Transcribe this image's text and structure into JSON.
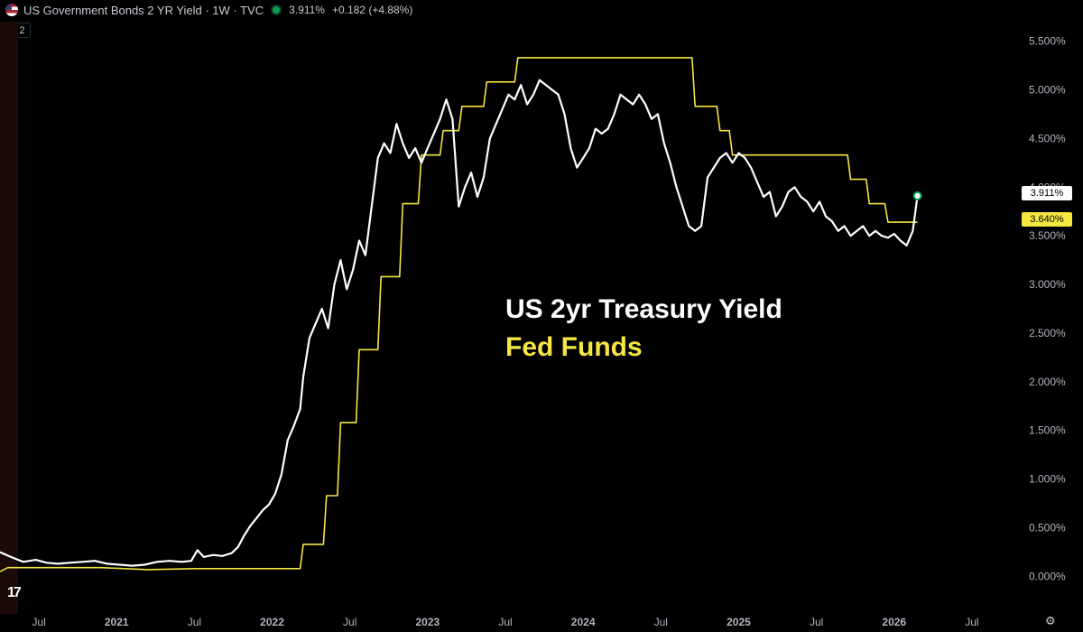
{
  "header": {
    "symbol": "US Government Bonds 2 YR Yield · 1W · TVC",
    "last": "3.911%",
    "change": "+0.182 (+4.88%)",
    "collapse_label": "2"
  },
  "overlay": {
    "line1": "US 2yr Treasury Yield",
    "line2": "Fed Funds",
    "line1_color": "#ffffff",
    "line2_color": "#f5e642"
  },
  "tags": {
    "yield": "3.911%",
    "fed": "3.640%"
  },
  "colors": {
    "yield": "#ffffff",
    "fed": "#f5e642",
    "background": "#000000"
  },
  "chart_data": {
    "type": "line",
    "ylim": [
      -0.2,
      5.7
    ],
    "xlim": [
      2020.25,
      2026.75
    ],
    "y_ticks": [
      "0.000%",
      "0.500%",
      "1.000%",
      "1.500%",
      "2.000%",
      "2.500%",
      "3.000%",
      "3.500%",
      "4.000%",
      "4.500%",
      "5.000%",
      "5.500%"
    ],
    "y_tick_values": [
      0,
      0.5,
      1.0,
      1.5,
      2.0,
      2.5,
      3.0,
      3.5,
      4.0,
      4.5,
      5.0,
      5.5
    ],
    "x_ticks": [
      {
        "label": "Jul",
        "x": 2020.5,
        "bold": false
      },
      {
        "label": "2021",
        "x": 2021.0,
        "bold": true
      },
      {
        "label": "Jul",
        "x": 2021.5,
        "bold": false
      },
      {
        "label": "2022",
        "x": 2022.0,
        "bold": true
      },
      {
        "label": "Jul",
        "x": 2022.5,
        "bold": false
      },
      {
        "label": "2023",
        "x": 2023.0,
        "bold": true
      },
      {
        "label": "Jul",
        "x": 2023.5,
        "bold": false
      },
      {
        "label": "2024",
        "x": 2024.0,
        "bold": true
      },
      {
        "label": "Jul",
        "x": 2024.5,
        "bold": false
      },
      {
        "label": "2025",
        "x": 2025.0,
        "bold": true
      },
      {
        "label": "Jul",
        "x": 2025.5,
        "bold": false
      },
      {
        "label": "2026",
        "x": 2026.0,
        "bold": true
      },
      {
        "label": "Jul",
        "x": 2026.5,
        "bold": false
      }
    ],
    "series": [
      {
        "name": "US 2yr Treasury Yield",
        "color": "#ffffff",
        "points": [
          [
            2020.25,
            0.25
          ],
          [
            2020.32,
            0.2
          ],
          [
            2020.4,
            0.15
          ],
          [
            2020.48,
            0.17
          ],
          [
            2020.55,
            0.14
          ],
          [
            2020.62,
            0.13
          ],
          [
            2020.7,
            0.14
          ],
          [
            2020.78,
            0.15
          ],
          [
            2020.86,
            0.16
          ],
          [
            2020.94,
            0.13
          ],
          [
            2021.02,
            0.12
          ],
          [
            2021.1,
            0.11
          ],
          [
            2021.18,
            0.12
          ],
          [
            2021.26,
            0.15
          ],
          [
            2021.34,
            0.16
          ],
          [
            2021.42,
            0.15
          ],
          [
            2021.48,
            0.16
          ],
          [
            2021.52,
            0.27
          ],
          [
            2021.56,
            0.2
          ],
          [
            2021.62,
            0.22
          ],
          [
            2021.68,
            0.21
          ],
          [
            2021.74,
            0.24
          ],
          [
            2021.78,
            0.3
          ],
          [
            2021.82,
            0.42
          ],
          [
            2021.86,
            0.52
          ],
          [
            2021.9,
            0.6
          ],
          [
            2021.94,
            0.68
          ],
          [
            2021.98,
            0.74
          ],
          [
            2022.02,
            0.85
          ],
          [
            2022.06,
            1.05
          ],
          [
            2022.1,
            1.4
          ],
          [
            2022.14,
            1.55
          ],
          [
            2022.18,
            1.72
          ],
          [
            2022.2,
            2.05
          ],
          [
            2022.24,
            2.45
          ],
          [
            2022.28,
            2.6
          ],
          [
            2022.32,
            2.75
          ],
          [
            2022.36,
            2.55
          ],
          [
            2022.4,
            3.0
          ],
          [
            2022.44,
            3.25
          ],
          [
            2022.48,
            2.95
          ],
          [
            2022.52,
            3.15
          ],
          [
            2022.56,
            3.45
          ],
          [
            2022.6,
            3.3
          ],
          [
            2022.64,
            3.8
          ],
          [
            2022.68,
            4.3
          ],
          [
            2022.72,
            4.45
          ],
          [
            2022.76,
            4.35
          ],
          [
            2022.8,
            4.65
          ],
          [
            2022.84,
            4.45
          ],
          [
            2022.88,
            4.3
          ],
          [
            2022.92,
            4.4
          ],
          [
            2022.96,
            4.25
          ],
          [
            2023.0,
            4.4
          ],
          [
            2023.04,
            4.55
          ],
          [
            2023.08,
            4.7
          ],
          [
            2023.12,
            4.9
          ],
          [
            2023.16,
            4.7
          ],
          [
            2023.2,
            3.8
          ],
          [
            2023.24,
            4.0
          ],
          [
            2023.28,
            4.15
          ],
          [
            2023.32,
            3.9
          ],
          [
            2023.36,
            4.1
          ],
          [
            2023.4,
            4.5
          ],
          [
            2023.44,
            4.65
          ],
          [
            2023.48,
            4.8
          ],
          [
            2023.52,
            4.95
          ],
          [
            2023.56,
            4.9
          ],
          [
            2023.6,
            5.05
          ],
          [
            2023.64,
            4.85
          ],
          [
            2023.68,
            4.95
          ],
          [
            2023.72,
            5.1
          ],
          [
            2023.76,
            5.05
          ],
          [
            2023.8,
            5.0
          ],
          [
            2023.84,
            4.95
          ],
          [
            2023.88,
            4.75
          ],
          [
            2023.92,
            4.4
          ],
          [
            2023.96,
            4.2
          ],
          [
            2024.0,
            4.3
          ],
          [
            2024.04,
            4.4
          ],
          [
            2024.08,
            4.6
          ],
          [
            2024.12,
            4.55
          ],
          [
            2024.16,
            4.6
          ],
          [
            2024.2,
            4.75
          ],
          [
            2024.24,
            4.95
          ],
          [
            2024.28,
            4.9
          ],
          [
            2024.32,
            4.85
          ],
          [
            2024.36,
            4.95
          ],
          [
            2024.4,
            4.85
          ],
          [
            2024.44,
            4.7
          ],
          [
            2024.48,
            4.75
          ],
          [
            2024.52,
            4.45
          ],
          [
            2024.56,
            4.25
          ],
          [
            2024.6,
            4.0
          ],
          [
            2024.64,
            3.8
          ],
          [
            2024.68,
            3.6
          ],
          [
            2024.72,
            3.55
          ],
          [
            2024.76,
            3.6
          ],
          [
            2024.8,
            4.1
          ],
          [
            2024.84,
            4.2
          ],
          [
            2024.88,
            4.3
          ],
          [
            2024.92,
            4.35
          ],
          [
            2024.96,
            4.25
          ],
          [
            2025.0,
            4.35
          ],
          [
            2025.04,
            4.3
          ],
          [
            2025.08,
            4.2
          ],
          [
            2025.12,
            4.05
          ],
          [
            2025.16,
            3.9
          ],
          [
            2025.2,
            3.95
          ],
          [
            2025.24,
            3.7
          ],
          [
            2025.28,
            3.8
          ],
          [
            2025.32,
            3.95
          ],
          [
            2025.36,
            4.0
          ],
          [
            2025.4,
            3.9
          ],
          [
            2025.44,
            3.85
          ],
          [
            2025.48,
            3.75
          ],
          [
            2025.52,
            3.85
          ],
          [
            2025.56,
            3.7
          ],
          [
            2025.6,
            3.65
          ],
          [
            2025.64,
            3.55
          ],
          [
            2025.68,
            3.6
          ],
          [
            2025.72,
            3.5
          ],
          [
            2025.76,
            3.55
          ],
          [
            2025.8,
            3.6
          ],
          [
            2025.84,
            3.5
          ],
          [
            2025.88,
            3.55
          ],
          [
            2025.92,
            3.5
          ],
          [
            2025.96,
            3.48
          ],
          [
            2026.0,
            3.52
          ],
          [
            2026.04,
            3.45
          ],
          [
            2026.08,
            3.4
          ],
          [
            2026.12,
            3.55
          ],
          [
            2026.15,
            3.911
          ]
        ]
      },
      {
        "name": "Fed Funds",
        "color": "#f5e642",
        "points": [
          [
            2020.25,
            0.05
          ],
          [
            2020.3,
            0.09
          ],
          [
            2020.6,
            0.09
          ],
          [
            2020.9,
            0.09
          ],
          [
            2021.2,
            0.07
          ],
          [
            2021.5,
            0.08
          ],
          [
            2021.8,
            0.08
          ],
          [
            2022.1,
            0.08
          ],
          [
            2022.18,
            0.08
          ],
          [
            2022.2,
            0.33
          ],
          [
            2022.33,
            0.33
          ],
          [
            2022.35,
            0.83
          ],
          [
            2022.42,
            0.83
          ],
          [
            2022.44,
            1.58
          ],
          [
            2022.54,
            1.58
          ],
          [
            2022.56,
            2.33
          ],
          [
            2022.68,
            2.33
          ],
          [
            2022.7,
            3.08
          ],
          [
            2022.82,
            3.08
          ],
          [
            2022.84,
            3.83
          ],
          [
            2022.94,
            3.83
          ],
          [
            2022.96,
            4.33
          ],
          [
            2023.08,
            4.33
          ],
          [
            2023.1,
            4.58
          ],
          [
            2023.2,
            4.58
          ],
          [
            2023.22,
            4.83
          ],
          [
            2023.36,
            4.83
          ],
          [
            2023.38,
            5.08
          ],
          [
            2023.56,
            5.08
          ],
          [
            2023.58,
            5.33
          ],
          [
            2024.7,
            5.33
          ],
          [
            2024.72,
            4.83
          ],
          [
            2024.86,
            4.83
          ],
          [
            2024.88,
            4.58
          ],
          [
            2024.94,
            4.58
          ],
          [
            2024.96,
            4.33
          ],
          [
            2025.7,
            4.33
          ],
          [
            2025.72,
            4.08
          ],
          [
            2025.82,
            4.08
          ],
          [
            2025.84,
            3.83
          ],
          [
            2025.94,
            3.83
          ],
          [
            2025.96,
            3.64
          ],
          [
            2026.15,
            3.64
          ]
        ]
      }
    ]
  }
}
